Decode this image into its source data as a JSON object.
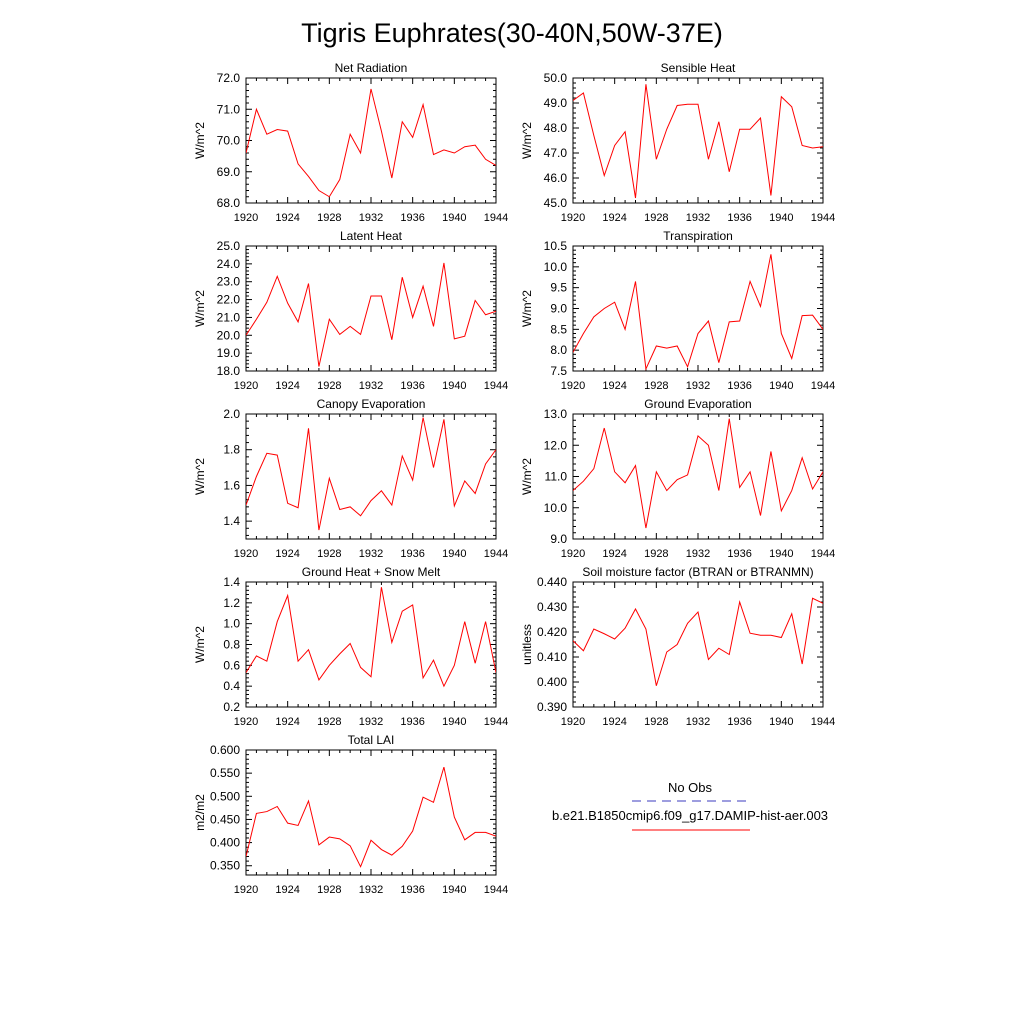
{
  "page": {
    "title": "Tigris Euphrates(30-40N,50W-37E)"
  },
  "legend": {
    "items": [
      {
        "label": "No Obs",
        "color": "#3b3bbf",
        "style": "dashed"
      },
      {
        "label": "b.e21.B1850cmip6.f09_g17.DAMIP-hist-aer.003",
        "color": "#ff0000",
        "style": "solid"
      }
    ]
  },
  "chart_data": [
    {
      "type": "line",
      "title": "Net Radiation",
      "ylabel": "W/m^2",
      "xlim": [
        1920,
        1944
      ],
      "ylim": [
        68.0,
        72.0
      ],
      "xticks": [
        "1920",
        "1924",
        "1928",
        "1932",
        "1936",
        "1940",
        "1944"
      ],
      "yticks": [
        "68.0",
        "69.0",
        "70.0",
        "71.0",
        "72.0"
      ],
      "x": [
        1920,
        1921,
        1922,
        1923,
        1924,
        1925,
        1926,
        1927,
        1928,
        1929,
        1930,
        1931,
        1932,
        1933,
        1934,
        1935,
        1936,
        1937,
        1938,
        1939,
        1940,
        1941,
        1942,
        1943,
        1944
      ],
      "series": [
        {
          "color": "#ff0000",
          "values": [
            69.6,
            71.0,
            70.2,
            70.35,
            70.3,
            69.25,
            68.85,
            68.4,
            68.2,
            68.75,
            70.2,
            69.6,
            71.65,
            70.3,
            68.8,
            70.6,
            70.1,
            71.15,
            69.55,
            69.7,
            69.6,
            69.8,
            69.85,
            69.4,
            69.2
          ]
        }
      ]
    },
    {
      "type": "line",
      "title": "Sensible Heat",
      "ylabel": "W/m^2",
      "xlim": [
        1920,
        1944
      ],
      "ylim": [
        45.0,
        50.0
      ],
      "xticks": [
        "1920",
        "1924",
        "1928",
        "1932",
        "1936",
        "1940",
        "1944"
      ],
      "yticks": [
        "45.0",
        "46.0",
        "47.0",
        "48.0",
        "49.0",
        "50.0"
      ],
      "x": [
        1920,
        1921,
        1922,
        1923,
        1924,
        1925,
        1926,
        1927,
        1928,
        1929,
        1930,
        1931,
        1932,
        1933,
        1934,
        1935,
        1936,
        1937,
        1938,
        1939,
        1940,
        1941,
        1942,
        1943,
        1944
      ],
      "series": [
        {
          "color": "#ff0000",
          "values": [
            49.1,
            49.4,
            47.7,
            46.1,
            47.3,
            47.85,
            45.2,
            49.75,
            46.75,
            47.95,
            48.9,
            48.95,
            48.95,
            46.75,
            48.25,
            46.25,
            47.95,
            47.95,
            48.4,
            45.3,
            49.25,
            48.85,
            47.3,
            47.2,
            47.25
          ]
        }
      ]
    },
    {
      "type": "line",
      "title": "Latent Heat",
      "ylabel": "W/m^2",
      "xlim": [
        1920,
        1944
      ],
      "ylim": [
        18.0,
        25.0
      ],
      "xticks": [
        "1920",
        "1924",
        "1928",
        "1932",
        "1936",
        "1940",
        "1944"
      ],
      "yticks": [
        "18.0",
        "19.0",
        "20.0",
        "21.0",
        "22.0",
        "23.0",
        "24.0",
        "25.0"
      ],
      "x": [
        1920,
        1921,
        1922,
        1923,
        1924,
        1925,
        1926,
        1927,
        1928,
        1929,
        1930,
        1931,
        1932,
        1933,
        1934,
        1935,
        1936,
        1937,
        1938,
        1939,
        1940,
        1941,
        1942,
        1943,
        1944
      ],
      "series": [
        {
          "color": "#ff0000",
          "values": [
            20.0,
            20.9,
            21.85,
            23.3,
            21.8,
            20.75,
            22.9,
            18.25,
            20.9,
            20.05,
            20.5,
            20.05,
            22.2,
            22.2,
            19.75,
            23.25,
            21.0,
            22.75,
            20.5,
            24.05,
            19.8,
            19.95,
            21.95,
            21.15,
            21.35
          ]
        }
      ]
    },
    {
      "type": "line",
      "title": "Transpiration",
      "ylabel": "W/m^2",
      "xlim": [
        1920,
        1944
      ],
      "ylim": [
        7.5,
        10.5
      ],
      "xticks": [
        "1920",
        "1924",
        "1928",
        "1932",
        "1936",
        "1940",
        "1944"
      ],
      "yticks": [
        "7.5",
        "8.0",
        "8.5",
        "9.0",
        "9.5",
        "10.0",
        "10.5"
      ],
      "x": [
        1920,
        1921,
        1922,
        1923,
        1924,
        1925,
        1926,
        1927,
        1928,
        1929,
        1930,
        1931,
        1932,
        1933,
        1934,
        1935,
        1936,
        1937,
        1938,
        1939,
        1940,
        1941,
        1942,
        1943,
        1944
      ],
      "series": [
        {
          "color": "#ff0000",
          "values": [
            7.95,
            8.4,
            8.8,
            9.0,
            9.15,
            8.5,
            9.65,
            7.55,
            8.1,
            8.05,
            8.1,
            7.6,
            8.4,
            8.7,
            7.7,
            8.68,
            8.7,
            9.65,
            9.05,
            10.3,
            8.4,
            7.8,
            8.83,
            8.84,
            8.5
          ]
        }
      ]
    },
    {
      "type": "line",
      "title": "Canopy Evaporation",
      "ylabel": "W/m^2",
      "xlim": [
        1920,
        1944
      ],
      "ylim": [
        1.3,
        2.0
      ],
      "xticks": [
        "1920",
        "1924",
        "1928",
        "1932",
        "1936",
        "1940",
        "1944"
      ],
      "yticks": [
        "1.4",
        "1.6",
        "1.8",
        "2.0"
      ],
      "x": [
        1920,
        1921,
        1922,
        1923,
        1924,
        1925,
        1926,
        1927,
        1928,
        1929,
        1930,
        1931,
        1932,
        1933,
        1934,
        1935,
        1936,
        1937,
        1938,
        1939,
        1940,
        1941,
        1942,
        1943,
        1944
      ],
      "series": [
        {
          "color": "#ff0000",
          "values": [
            1.49,
            1.65,
            1.78,
            1.77,
            1.5,
            1.475,
            1.92,
            1.35,
            1.64,
            1.465,
            1.48,
            1.43,
            1.515,
            1.57,
            1.49,
            1.765,
            1.63,
            1.98,
            1.7,
            1.97,
            1.485,
            1.625,
            1.555,
            1.72,
            1.8
          ]
        }
      ]
    },
    {
      "type": "line",
      "title": "Ground Evaporation",
      "ylabel": "W/m^2",
      "xlim": [
        1920,
        1944
      ],
      "ylim": [
        9.0,
        13.0
      ],
      "xticks": [
        "1920",
        "1924",
        "1928",
        "1932",
        "1936",
        "1940",
        "1944"
      ],
      "yticks": [
        "9.0",
        "10.0",
        "11.0",
        "12.0",
        "13.0"
      ],
      "x": [
        1920,
        1921,
        1922,
        1923,
        1924,
        1925,
        1926,
        1927,
        1928,
        1929,
        1930,
        1931,
        1932,
        1933,
        1934,
        1935,
        1936,
        1937,
        1938,
        1939,
        1940,
        1941,
        1942,
        1943,
        1944
      ],
      "series": [
        {
          "color": "#ff0000",
          "values": [
            10.55,
            10.85,
            11.25,
            12.55,
            11.15,
            10.8,
            11.35,
            9.35,
            11.15,
            10.55,
            10.9,
            11.05,
            12.3,
            12.0,
            10.55,
            12.85,
            10.65,
            11.15,
            9.75,
            11.8,
            9.9,
            10.55,
            11.6,
            10.6,
            11.15
          ]
        }
      ]
    },
    {
      "type": "line",
      "title": "Ground Heat + Snow Melt",
      "ylabel": "W/m^2",
      "xlim": [
        1920,
        1944
      ],
      "ylim": [
        0.2,
        1.4
      ],
      "xticks": [
        "1920",
        "1924",
        "1928",
        "1932",
        "1936",
        "1940",
        "1944"
      ],
      "yticks": [
        "0.2",
        "0.4",
        "0.6",
        "0.8",
        "1.0",
        "1.2",
        "1.4"
      ],
      "x": [
        1920,
        1921,
        1922,
        1923,
        1924,
        1925,
        1926,
        1927,
        1928,
        1929,
        1930,
        1931,
        1932,
        1933,
        1934,
        1935,
        1936,
        1937,
        1938,
        1939,
        1940,
        1941,
        1942,
        1943,
        1944
      ],
      "series": [
        {
          "color": "#ff0000",
          "values": [
            0.53,
            0.69,
            0.64,
            1.02,
            1.27,
            0.64,
            0.75,
            0.46,
            0.6,
            0.71,
            0.81,
            0.58,
            0.49,
            1.35,
            0.82,
            1.12,
            1.18,
            0.48,
            0.65,
            0.4,
            0.6,
            1.02,
            0.62,
            1.02,
            0.53
          ]
        }
      ]
    },
    {
      "type": "line",
      "title": "Soil moisture factor (BTRAN or BTRANMN)",
      "ylabel": "unitless",
      "xlim": [
        1920,
        1944
      ],
      "ylim": [
        0.39,
        0.44
      ],
      "xticks": [
        "1920",
        "1924",
        "1928",
        "1932",
        "1936",
        "1940",
        "1944"
      ],
      "yticks": [
        "0.390",
        "0.400",
        "0.410",
        "0.420",
        "0.430",
        "0.440"
      ],
      "x": [
        1920,
        1921,
        1922,
        1923,
        1924,
        1925,
        1926,
        1927,
        1928,
        1929,
        1930,
        1931,
        1932,
        1933,
        1934,
        1935,
        1936,
        1937,
        1938,
        1939,
        1940,
        1941,
        1942,
        1943,
        1944
      ],
      "series": [
        {
          "color": "#ff0000",
          "values": [
            0.4165,
            0.4125,
            0.4212,
            0.4193,
            0.4172,
            0.4215,
            0.4292,
            0.4212,
            0.3985,
            0.412,
            0.415,
            0.4235,
            0.428,
            0.409,
            0.4135,
            0.411,
            0.432,
            0.4195,
            0.4187,
            0.4187,
            0.4178,
            0.4273,
            0.4072,
            0.4335,
            0.4315
          ]
        }
      ]
    },
    {
      "type": "line",
      "title": "Total LAI",
      "ylabel": "m2/m2",
      "xlim": [
        1920,
        1944
      ],
      "ylim": [
        0.33,
        0.6
      ],
      "xticks": [
        "1920",
        "1924",
        "1928",
        "1932",
        "1936",
        "1940",
        "1944"
      ],
      "yticks": [
        "0.350",
        "0.400",
        "0.450",
        "0.500",
        "0.550",
        "0.600"
      ],
      "x": [
        1920,
        1921,
        1922,
        1923,
        1924,
        1925,
        1926,
        1927,
        1928,
        1929,
        1930,
        1931,
        1932,
        1933,
        1934,
        1935,
        1936,
        1937,
        1938,
        1939,
        1940,
        1941,
        1942,
        1943,
        1944
      ],
      "series": [
        {
          "color": "#ff0000",
          "values": [
            0.37,
            0.463,
            0.467,
            0.478,
            0.442,
            0.437,
            0.49,
            0.395,
            0.412,
            0.408,
            0.393,
            0.348,
            0.405,
            0.385,
            0.373,
            0.392,
            0.425,
            0.498,
            0.487,
            0.563,
            0.455,
            0.406,
            0.422,
            0.422,
            0.414
          ]
        }
      ]
    }
  ]
}
